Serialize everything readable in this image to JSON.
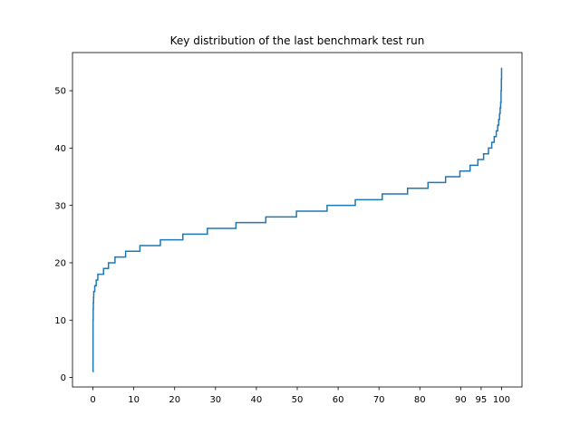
{
  "chart_data": {
    "type": "line",
    "title": "Key distribution of the last benchmark test run",
    "xlabel": "",
    "ylabel": "",
    "xlim": [
      -5,
      105
    ],
    "ylim": [
      -1.65,
      56.65
    ],
    "xticks": [
      0,
      10,
      20,
      30,
      40,
      50,
      60,
      70,
      80,
      90,
      95,
      100
    ],
    "xtick_labels": [
      "0",
      "10",
      "20",
      "30",
      "40",
      "50",
      "60",
      "70",
      "80",
      "90",
      "95",
      "100"
    ],
    "yticks": [
      0,
      10,
      20,
      30,
      40,
      50
    ],
    "ytick_labels": [
      "0",
      "10",
      "20",
      "30",
      "40",
      "50"
    ],
    "grid": false,
    "legend": "none",
    "series_color": "#1f77b4",
    "series": [
      {
        "drawstyle": "steps-post",
        "x": [
          0,
          0.03,
          0.06,
          0.1,
          0.15,
          0.2,
          0.3,
          0.45,
          0.6,
          0.8,
          1.2,
          1.8,
          2.6,
          3.8,
          5.4,
          8.0,
          11.5,
          16.5,
          22.0,
          28.0,
          35.0,
          42.3,
          49.8,
          57.3,
          64.2,
          70.8,
          77.0,
          82.0,
          86.3,
          89.8,
          92.3,
          94.2,
          95.6,
          96.8,
          97.6,
          98.2,
          98.7,
          99.05,
          99.3,
          99.5,
          99.65,
          99.78,
          99.88,
          99.95,
          100
        ],
        "y": [
          1,
          10,
          12,
          13,
          14,
          15,
          15,
          16,
          16,
          17,
          18,
          18,
          19,
          20,
          21,
          22,
          23,
          24,
          25,
          26,
          27,
          28,
          29,
          30,
          31,
          32,
          33,
          34,
          35,
          36,
          37,
          38,
          39,
          40,
          41,
          42,
          43,
          44,
          45,
          46,
          47,
          48,
          50,
          52,
          54
        ]
      }
    ]
  }
}
